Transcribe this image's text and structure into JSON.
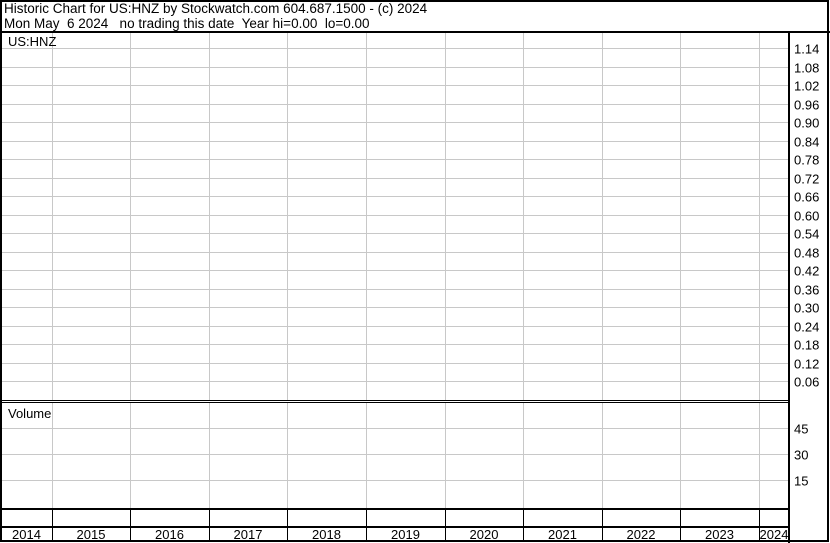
{
  "header": {
    "title": "Historic Chart for US:HNZ by Stockwatch.com 604.687.1500 - (c) 2024",
    "subtitle": "Mon May  6 2024   no trading this date  Year hi=0.00  lo=0.00"
  },
  "chart_data": [
    {
      "type": "line",
      "title": "US:HNZ",
      "series": [],
      "x_tick_labels": [
        "2014",
        "2015",
        "2016",
        "2017",
        "2018",
        "2019",
        "2020",
        "2021",
        "2022",
        "2023",
        "2024"
      ],
      "y_tick_labels": [
        "1.14",
        "1.08",
        "1.02",
        "0.96",
        "0.90",
        "0.84",
        "0.78",
        "0.72",
        "0.66",
        "0.60",
        "0.54",
        "0.48",
        "0.42",
        "0.36",
        "0.30",
        "0.24",
        "0.18",
        "0.12",
        "0.06"
      ],
      "ylim": [
        0,
        1.14
      ],
      "grid": true,
      "y_axis_side": "right"
    },
    {
      "type": "bar",
      "title": "Volume",
      "series": [],
      "y_tick_labels": [
        "45",
        "30",
        "15"
      ],
      "ylim": [
        0,
        45
      ],
      "grid": true,
      "y_axis_side": "right"
    }
  ],
  "colors": {
    "grid": "#c8c8c8",
    "frame": "#000000",
    "axis_text": "#000000"
  }
}
